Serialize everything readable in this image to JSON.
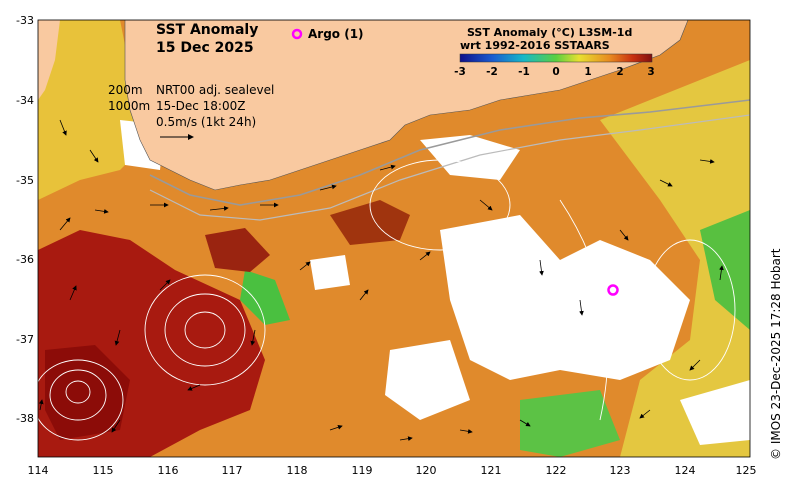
{
  "map": {
    "title_line1": "SST Anomaly",
    "title_line2": "15 Dec 2025",
    "argo_label": "Argo (1)",
    "legend_line1": "200m",
    "legend_line2": "1000m",
    "info_line1": "NRT00 adj. sealevel",
    "info_line2": "15-Dec 18:00Z",
    "scale_label": "0.5m/s (1kt 24h)",
    "credit": "© IMOS 23-Dec-2025 17:28 Hobart",
    "colorbar": {
      "title_line1": "SST Anomaly (°C) L3SM-1d",
      "title_line2": "wrt 1992-2016 SSTAARS",
      "ticks": [
        "-3",
        "-2",
        "-1",
        "0",
        "1",
        "2",
        "3"
      ],
      "range": [
        -3,
        3
      ]
    },
    "lon_labels": [
      "114",
      "115",
      "116",
      "117",
      "118",
      "119",
      "120",
      "121",
      "122",
      "123",
      "124",
      "125"
    ],
    "lat_labels": [
      "-33",
      "-34",
      "-35",
      "-36",
      "-37",
      "-38"
    ],
    "colors": {
      "land": "#f9c9a0",
      "warm": "#a01010",
      "orange": "#e68a2a",
      "yellow": "#e9c93a",
      "green": "#3fba3a",
      "argo_marker": "#ff00ff"
    }
  }
}
